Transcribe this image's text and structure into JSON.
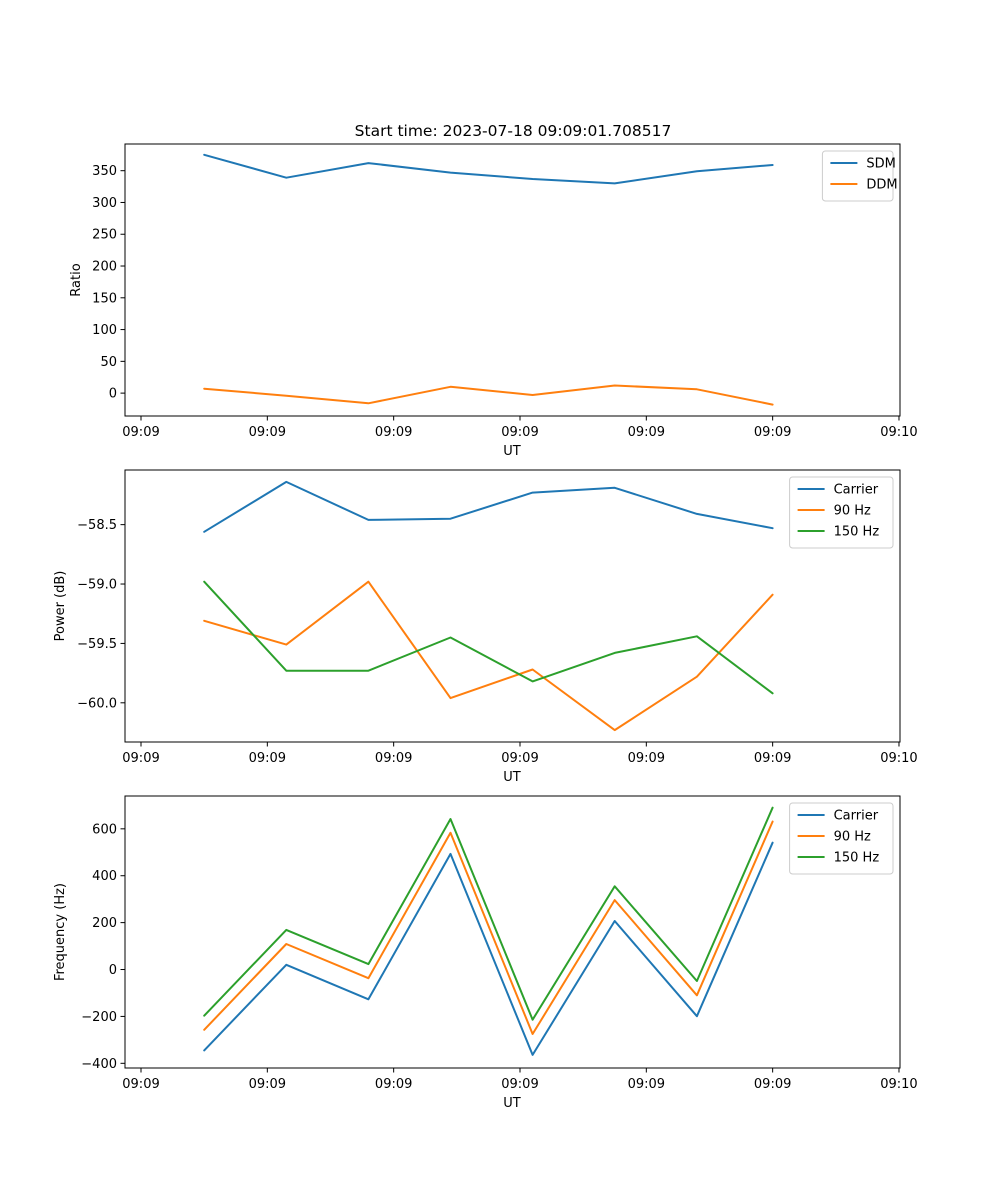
{
  "title": "Start time: 2023-07-18 09:09:01.708517",
  "colors": {
    "blue": "#1f77b4",
    "orange": "#ff7f0e",
    "green": "#2ca02c"
  },
  "chart_data": [
    {
      "type": "line",
      "id": "ratio",
      "xlabel": "UT",
      "ylabel": "Ratio",
      "x": [
        0.5,
        1.15,
        1.8,
        2.45,
        3.1,
        3.75,
        4.4,
        5.0
      ],
      "xlim": [
        0,
        6
      ],
      "x_ticks": [
        0,
        1,
        2,
        3,
        4,
        5,
        6
      ],
      "x_tick_labels": [
        "09:09",
        "09:09",
        "09:09",
        "09:09",
        "09:09",
        "09:09",
        "09:10"
      ],
      "ylim": [
        -36,
        392
      ],
      "y_ticks": [
        0,
        50,
        100,
        150,
        200,
        250,
        300,
        350
      ],
      "y_tick_labels": [
        "0",
        "50",
        "100",
        "150",
        "200",
        "250",
        "300",
        "350"
      ],
      "legend_position": "top-right",
      "series": [
        {
          "name": "SDM",
          "color": "#1f77b4",
          "values": [
            375,
            339,
            362,
            347,
            337,
            330,
            349,
            359
          ]
        },
        {
          "name": "DDM",
          "color": "#ff7f0e",
          "values": [
            7,
            -4,
            -16,
            10,
            -3,
            12,
            6,
            -18
          ]
        }
      ]
    },
    {
      "type": "line",
      "id": "power",
      "xlabel": "UT",
      "ylabel": "Power (dB)",
      "x": [
        0.5,
        1.15,
        1.8,
        2.45,
        3.1,
        3.75,
        4.4,
        5.0
      ],
      "xlim": [
        0,
        6
      ],
      "x_ticks": [
        0,
        1,
        2,
        3,
        4,
        5,
        6
      ],
      "x_tick_labels": [
        "09:09",
        "09:09",
        "09:09",
        "09:09",
        "09:09",
        "09:09",
        "09:10"
      ],
      "ylim": [
        -60.33,
        -58.04
      ],
      "y_ticks": [
        -60.0,
        -59.5,
        -59.0,
        -58.5
      ],
      "y_tick_labels": [
        "−60.0",
        "−59.5",
        "−59.0",
        "−58.5"
      ],
      "legend_position": "top-right",
      "series": [
        {
          "name": "Carrier",
          "color": "#1f77b4",
          "values": [
            -58.56,
            -58.14,
            -58.46,
            -58.45,
            -58.23,
            -58.19,
            -58.41,
            -58.53
          ]
        },
        {
          "name": "90 Hz",
          "color": "#ff7f0e",
          "values": [
            -59.31,
            -59.51,
            -58.98,
            -59.96,
            -59.72,
            -60.23,
            -59.78,
            -59.09
          ]
        },
        {
          "name": "150 Hz",
          "color": "#2ca02c",
          "values": [
            -58.98,
            -59.73,
            -59.73,
            -59.45,
            -59.82,
            -59.58,
            -59.44,
            -59.92
          ]
        }
      ]
    },
    {
      "type": "line",
      "id": "frequency",
      "xlabel": "UT",
      "ylabel": "Frequency (Hz)",
      "x": [
        0.5,
        1.15,
        1.8,
        2.45,
        3.1,
        3.75,
        4.4,
        5.0
      ],
      "xlim": [
        0,
        6
      ],
      "x_ticks": [
        0,
        1,
        2,
        3,
        4,
        5,
        6
      ],
      "x_tick_labels": [
        "09:09",
        "09:09",
        "09:09",
        "09:09",
        "09:09",
        "09:09",
        "09:10"
      ],
      "ylim": [
        -420,
        740
      ],
      "y_ticks": [
        -400,
        -200,
        0,
        200,
        400,
        600
      ],
      "y_tick_labels": [
        "−400",
        "−200",
        "0",
        "200",
        "400",
        "600"
      ],
      "legend_position": "top-right",
      "series": [
        {
          "name": "Carrier",
          "color": "#1f77b4",
          "values": [
            -345,
            20,
            -127,
            493,
            -364,
            207,
            -199,
            541
          ]
        },
        {
          "name": "90 Hz",
          "color": "#ff7f0e",
          "values": [
            -257,
            109,
            -37,
            583,
            -275,
            296,
            -110,
            631
          ]
        },
        {
          "name": "150 Hz",
          "color": "#2ca02c",
          "values": [
            -197,
            169,
            23,
            642,
            -214,
            355,
            -49,
            690
          ]
        }
      ]
    }
  ]
}
